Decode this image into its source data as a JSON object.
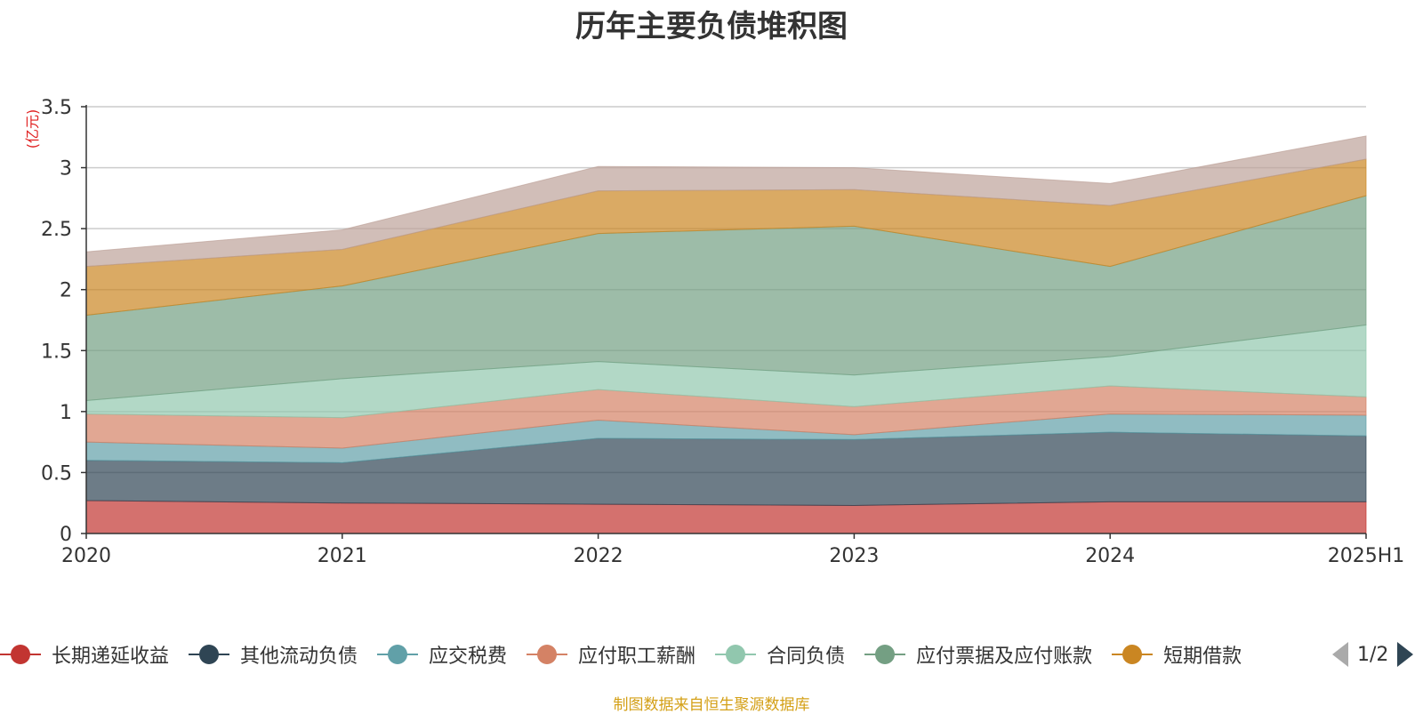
{
  "chart_data": {
    "type": "area",
    "stacked": true,
    "title": "历年主要负债堆积图",
    "unit_label": "(亿元)",
    "x": [
      "2020",
      "2021",
      "2022",
      "2023",
      "2024",
      "2025H1"
    ],
    "ylim": [
      0,
      3.5
    ],
    "yticks": [
      "0",
      "0.5",
      "1",
      "1.5",
      "2",
      "2.5",
      "3",
      "3.5"
    ],
    "grid": true,
    "legend_position": "bottom",
    "series": [
      {
        "name": "长期递延收益",
        "color": "#c23531",
        "values": [
          0.27,
          0.25,
          0.24,
          0.23,
          0.26,
          0.26
        ]
      },
      {
        "name": "其他流动负债",
        "color": "#2f4554",
        "values": [
          0.33,
          0.33,
          0.54,
          0.54,
          0.57,
          0.54
        ]
      },
      {
        "name": "应交税费",
        "color": "#61a0a8",
        "values": [
          0.15,
          0.12,
          0.15,
          0.04,
          0.15,
          0.17
        ]
      },
      {
        "name": "应付职工薪酬",
        "color": "#d48265",
        "values": [
          0.23,
          0.25,
          0.25,
          0.23,
          0.23,
          0.15
        ]
      },
      {
        "name": "合同负债",
        "color": "#91c7ae",
        "values": [
          0.11,
          0.32,
          0.23,
          0.26,
          0.24,
          0.59
        ]
      },
      {
        "name": "应付票据及应付账款",
        "color": "#749f83",
        "values": [
          0.7,
          0.76,
          1.05,
          1.22,
          0.74,
          1.06
        ]
      },
      {
        "name": "短期借款",
        "color": "#ca8622",
        "values": [
          0.4,
          0.3,
          0.35,
          0.3,
          0.5,
          0.3
        ]
      },
      {
        "name": "",
        "color": "#bda29a",
        "values": [
          0.12,
          0.16,
          0.2,
          0.18,
          0.18,
          0.19
        ]
      }
    ]
  },
  "legend": {
    "page": "1/2"
  },
  "source_note": "制图数据来自恒生聚源数据库"
}
